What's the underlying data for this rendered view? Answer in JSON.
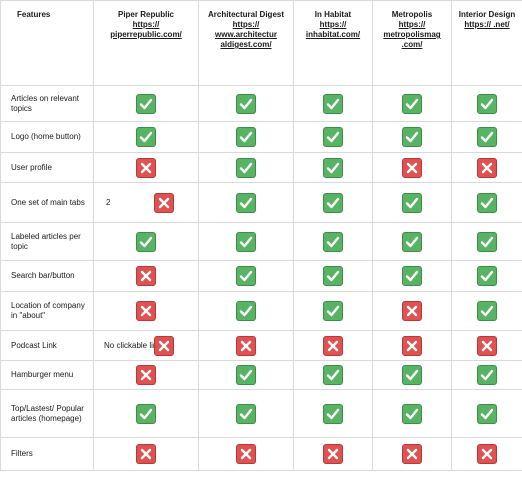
{
  "header": {
    "features_label": "Features",
    "columns": [
      {
        "name": "Piper Republic",
        "url": "https:// piperrepublic.com/"
      },
      {
        "name": "Architectural Digest",
        "url": "https:// www.architectur aldigest.com/"
      },
      {
        "name": "In Habitat",
        "url": "https:// inhabitat.com/"
      },
      {
        "name": "Metropolis",
        "url": "https:// metropolismag .com/"
      },
      {
        "name": "Interior Design",
        "url": "https:// .net/"
      }
    ]
  },
  "rows": [
    {
      "feature": "Articles on relevant topics",
      "values": [
        "yes",
        "yes",
        "yes",
        "yes",
        "yes"
      ],
      "note": ""
    },
    {
      "feature": "Logo (home button)",
      "values": [
        "yes",
        "yes",
        "yes",
        "yes",
        "yes"
      ],
      "note": ""
    },
    {
      "feature": "User profile",
      "values": [
        "no",
        "yes",
        "yes",
        "no",
        "no"
      ],
      "note": ""
    },
    {
      "feature": "One set of main tabs",
      "values": [
        "no",
        "yes",
        "yes",
        "yes",
        "yes"
      ],
      "note": "2"
    },
    {
      "feature": "Labeled articles per topic",
      "values": [
        "yes",
        "yes",
        "yes",
        "yes",
        "yes"
      ],
      "note": ""
    },
    {
      "feature": "Search bar/button",
      "values": [
        "no",
        "yes",
        "yes",
        "yes",
        "yes"
      ],
      "note": ""
    },
    {
      "feature": "Location of company in \"about\"",
      "values": [
        "no",
        "yes",
        "yes",
        "no",
        "yes"
      ],
      "note": ""
    },
    {
      "feature": "Podcast Link",
      "values": [
        "no",
        "no",
        "no",
        "no",
        "no"
      ],
      "note": "No clickable links"
    },
    {
      "feature": "Hamburger menu",
      "values": [
        "no",
        "yes",
        "yes",
        "yes",
        "yes"
      ],
      "note": ""
    },
    {
      "feature": "Top/Lastest/ Popular articles (homepage)",
      "values": [
        "yes",
        "yes",
        "yes",
        "yes",
        "yes"
      ],
      "note": ""
    },
    {
      "feature": "Filters",
      "values": [
        "no",
        "no",
        "no",
        "no",
        "no"
      ],
      "note": ""
    }
  ],
  "colors": {
    "yes": "#59b365",
    "no": "#e05252"
  },
  "icons": {
    "yes": "check-mark-icon",
    "no": "cross-mark-icon"
  }
}
